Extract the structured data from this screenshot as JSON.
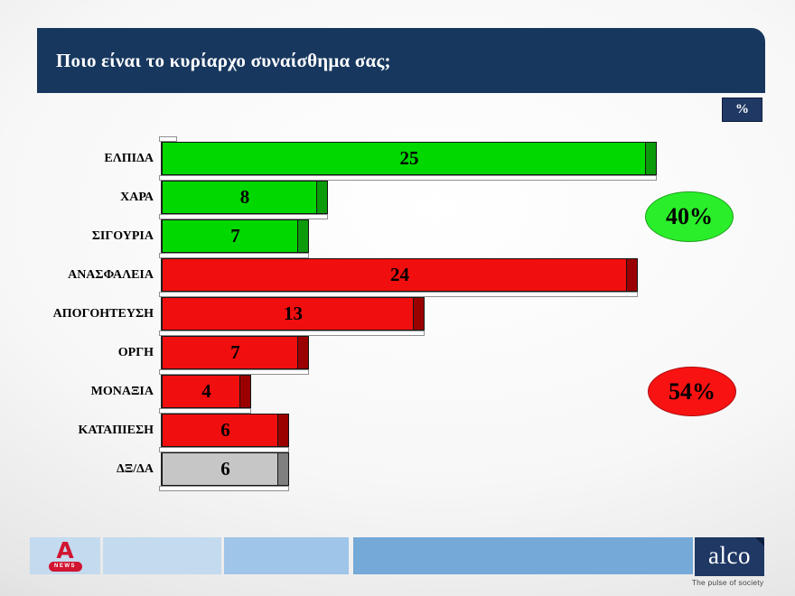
{
  "slide": {
    "title": "Ποιο είναι το κυρίαρχο συναίσθημα σας;",
    "percent_label": "%"
  },
  "chart_data": {
    "type": "bar",
    "orientation": "horizontal",
    "title": "Ποιο είναι το κυρίαρχο συναίσθημα σας;",
    "unit": "%",
    "categories": [
      "ΕΛΠΙΔΑ",
      "ΧΑΡΑ",
      "ΣΙΓΟΥΡΙΑ",
      "ΑΝΑΣΦΑΛΕΙΑ",
      "ΑΠΟΓΟΗΤΕΥΣΗ",
      "ΟΡΓΗ",
      "ΜΟΝΑΞΙΑ",
      "ΚΑΤΑΠΙΕΣΗ",
      "ΔΞ/ΔΑ"
    ],
    "values": [
      25,
      8,
      7,
      24,
      13,
      7,
      4,
      6,
      6
    ],
    "bar_colors": [
      "green",
      "green",
      "green",
      "red",
      "red",
      "red",
      "red",
      "red",
      "gray"
    ],
    "palette": {
      "green": {
        "fill": "#00D800",
        "cap": "#0B9B0B"
      },
      "red": {
        "fill": "#F10E0E",
        "cap": "#9B0000"
      },
      "gray": {
        "fill": "#C6C6C6",
        "cap": "#7F7F7F"
      }
    },
    "xlim": [
      0,
      26
    ],
    "grid": false,
    "value_labels": "inside-center"
  },
  "annotations": {
    "green_total": {
      "label": "40%",
      "color": "#2BEE2B"
    },
    "red_total": {
      "label": "54%",
      "color": "#F81212"
    }
  },
  "footer": {
    "alpha_logo": {
      "letter": "A",
      "badge": "NEWS",
      "color": "#d11430"
    },
    "alco_logo": {
      "text": "alco",
      "tagline": "The pulse of society",
      "color": "#1F3864"
    }
  }
}
